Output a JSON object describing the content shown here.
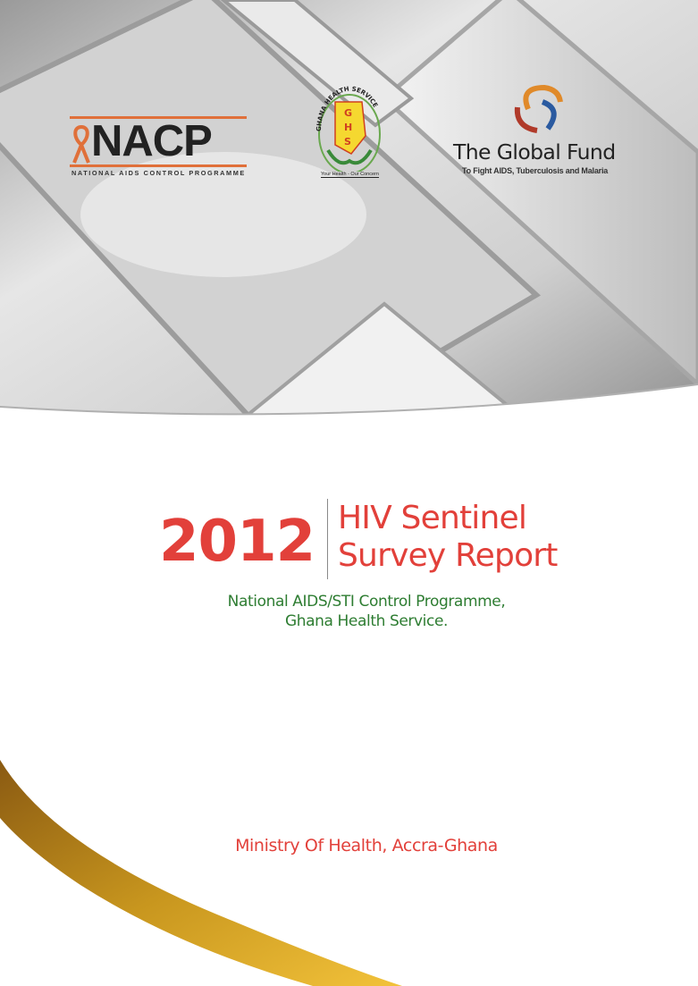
{
  "logos": {
    "nacp": {
      "name": "NACP",
      "subtitle": "NATIONAL AIDS CONTROL PROGRAMME"
    },
    "ghs": {
      "arc_text": "GHANA HEALTH SERVICE",
      "letters": "GHS",
      "tagline": "Your Health - Our Concern"
    },
    "global_fund": {
      "name": "The Global Fund",
      "subtitle": "To Fight AIDS, Tuberculosis and Malaria"
    }
  },
  "cover": {
    "year": "2012",
    "title_line1": "HIV Sentinel",
    "title_line2": "Survey Report",
    "subtitle_line1": "National AIDS/STI Control Programme,",
    "subtitle_line2": "Ghana Health Service.",
    "publisher": "Ministry Of Health, Accra-Ghana"
  },
  "colors": {
    "title_red": "#e2403a",
    "subtitle_green": "#2e7d32",
    "swoosh_gold": "#c8961e"
  }
}
